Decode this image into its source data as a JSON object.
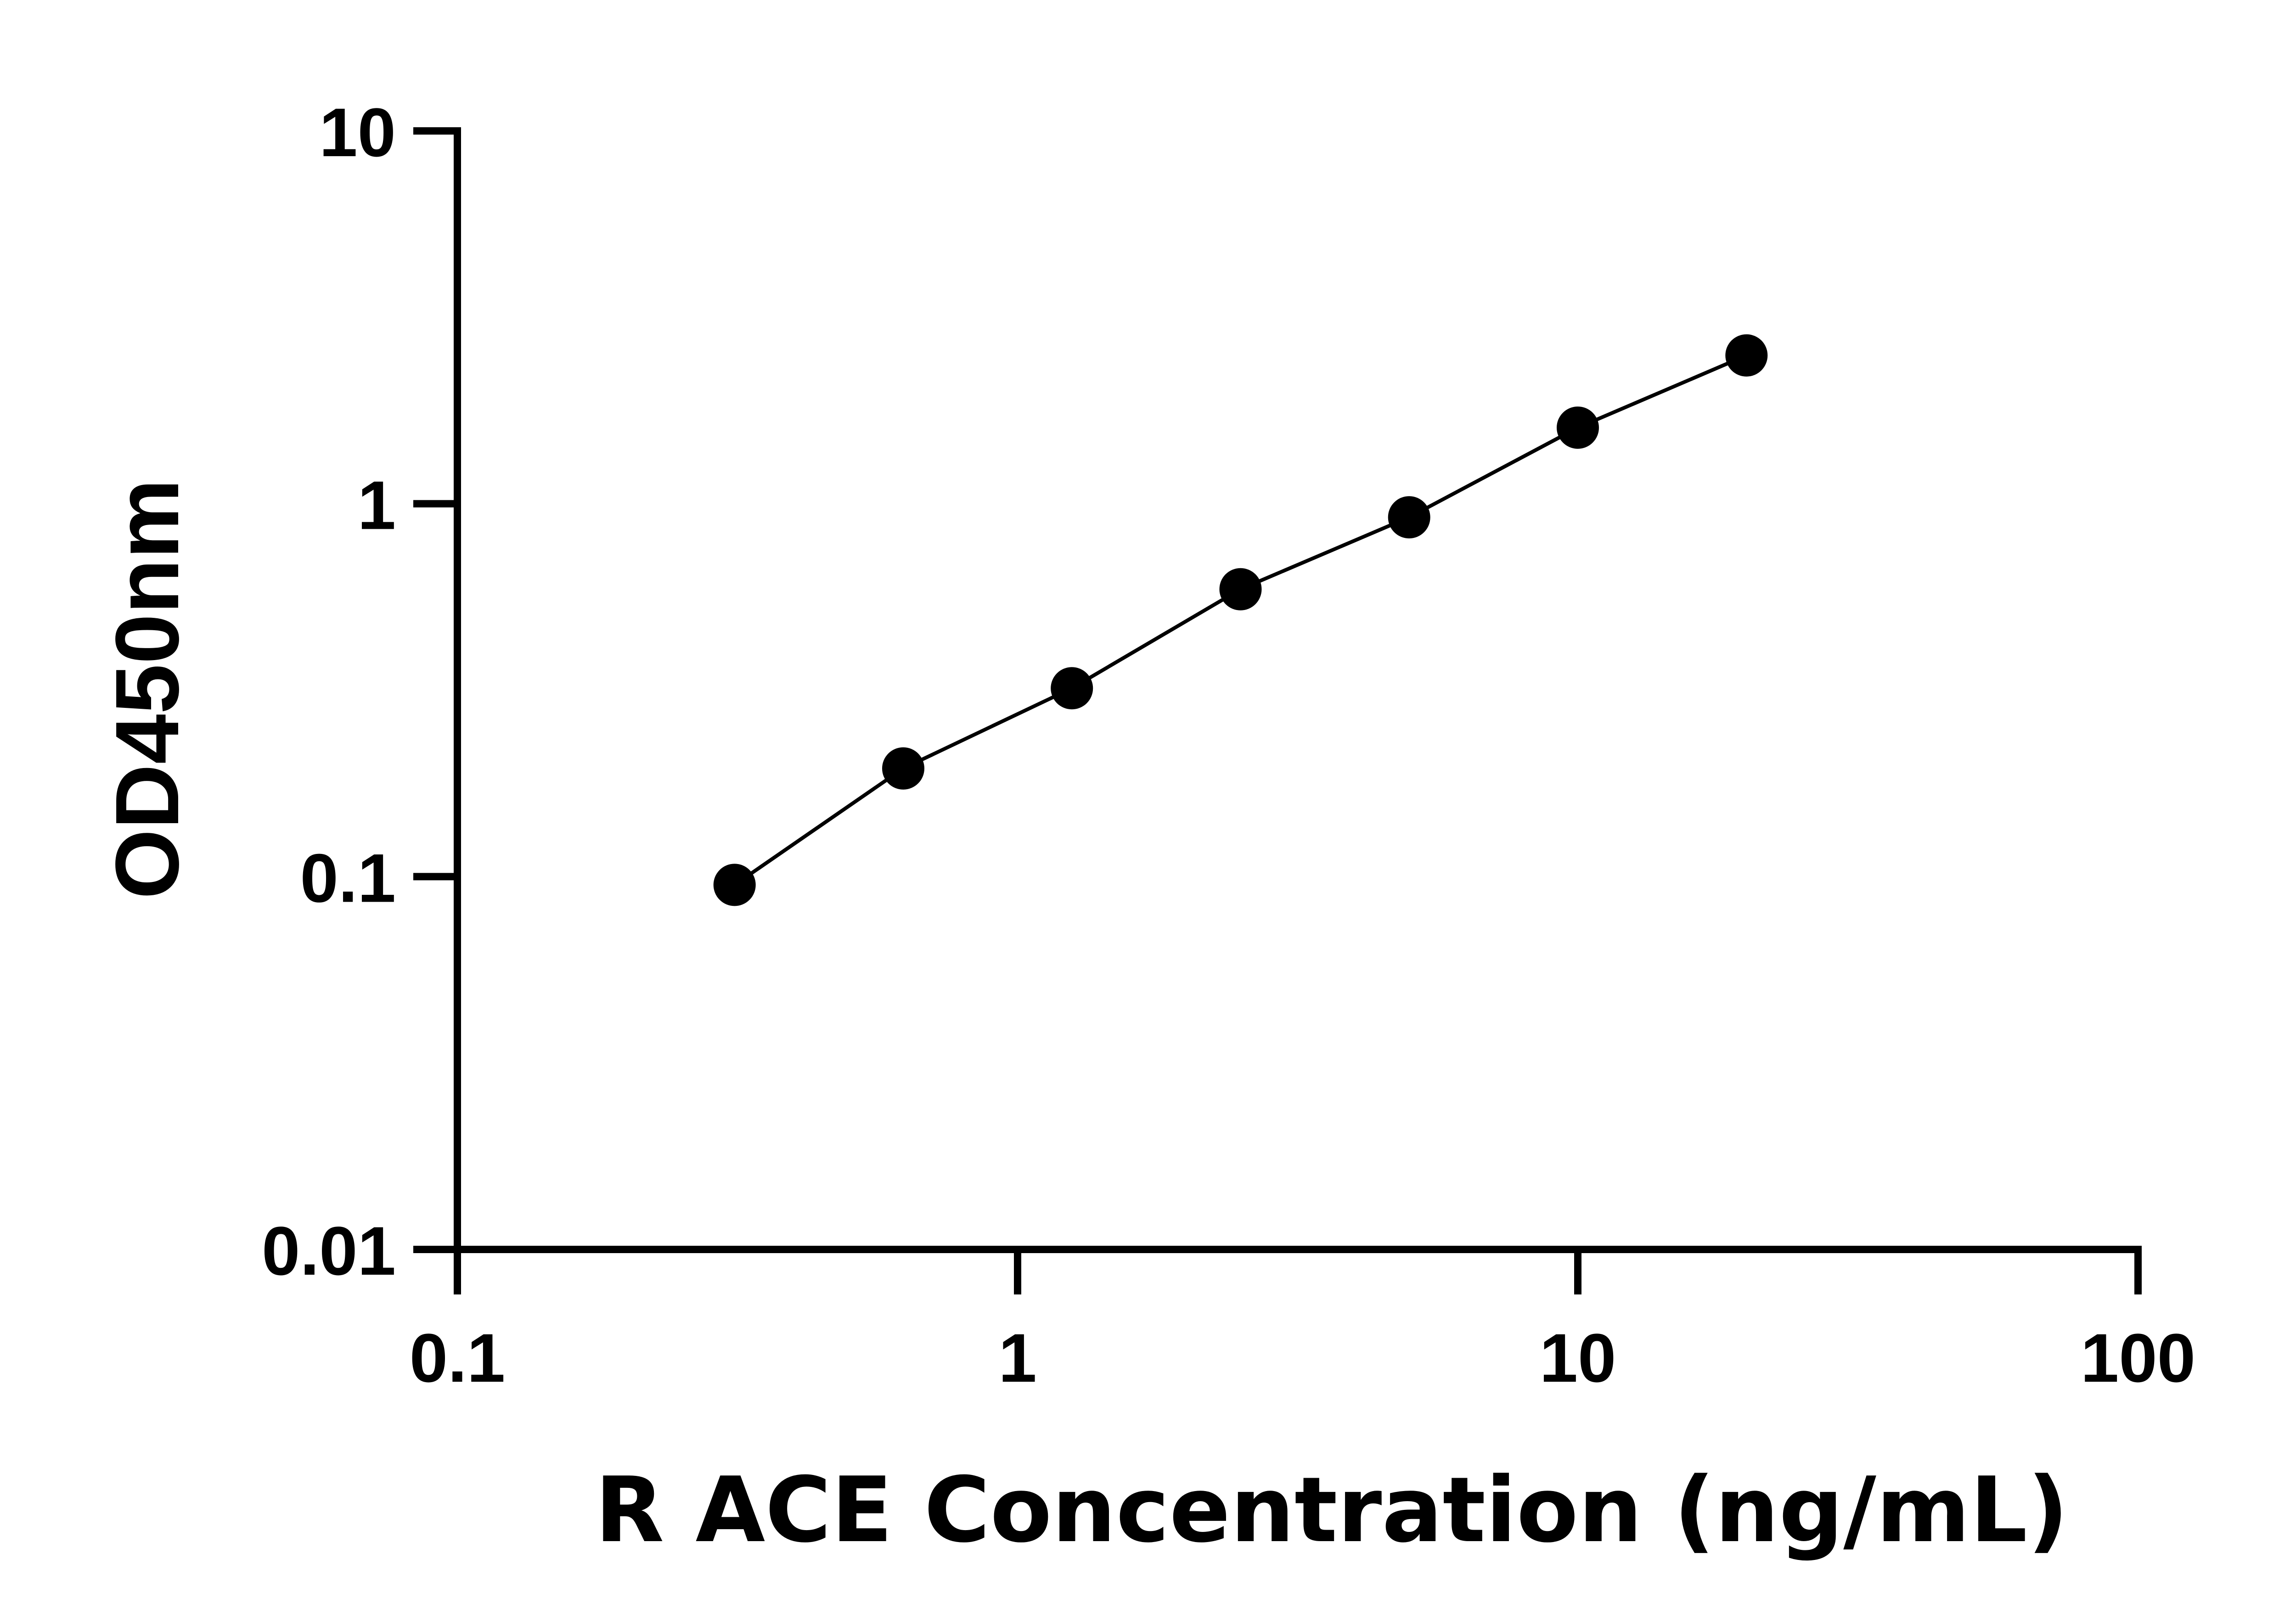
{
  "chart_data": {
    "type": "scatter",
    "title": "",
    "xlabel": "R ACE Concentration (ng/mL)",
    "ylabel": "OD450nm",
    "x_scale": "log",
    "y_scale": "log",
    "xlim": [
      0.1,
      100
    ],
    "ylim": [
      0.01,
      10
    ],
    "x_ticks": [
      "0.1",
      "1",
      "10",
      "100"
    ],
    "y_ticks": [
      "0.01",
      "0.1",
      "1",
      "10"
    ],
    "grid": false,
    "legend": "none",
    "series": [
      {
        "x": [
          0.3125,
          0.625,
          1.25,
          2.5,
          5,
          10,
          20
        ],
        "y": [
          0.095,
          0.195,
          0.32,
          0.59,
          0.92,
          1.6,
          2.5
        ],
        "marker": "circle",
        "line": "fitted-curve",
        "color": "#000000"
      }
    ]
  }
}
